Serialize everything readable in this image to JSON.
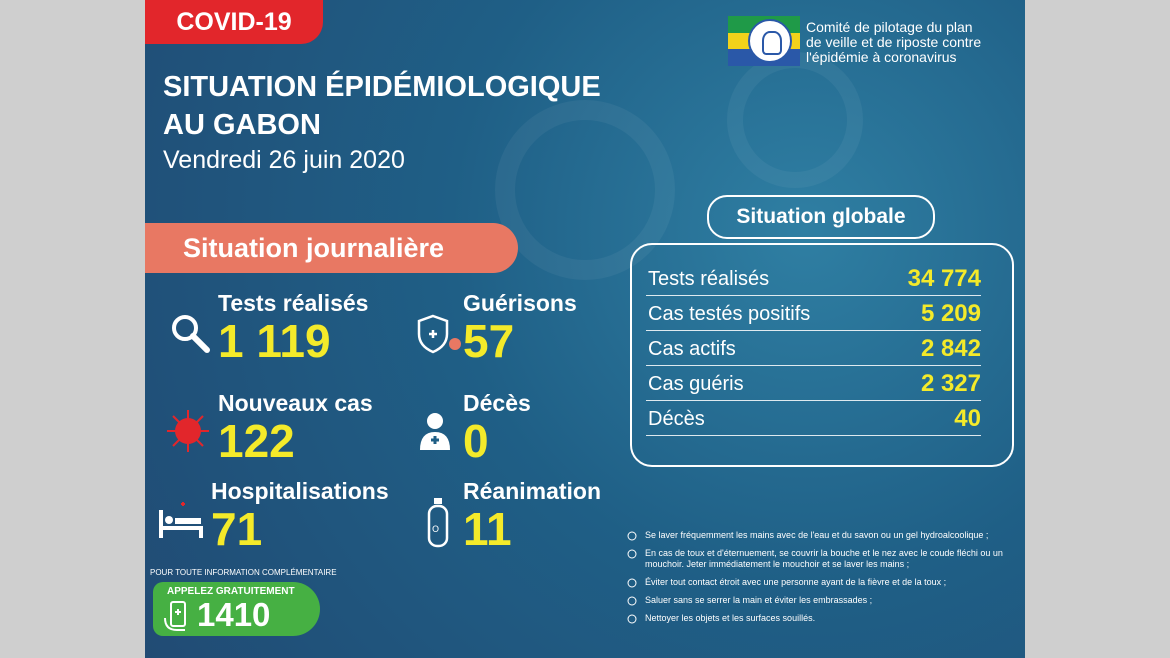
{
  "tag": "COVID-19",
  "title_line1": "SITUATION ÉPIDÉMIOLOGIQUE",
  "title_line2": "AU GABON",
  "date": "Vendredi 26 juin 2020",
  "committee": {
    "line1": "Comité de pilotage du plan",
    "line2": "de veille et de riposte contre",
    "line3": "l'épidémie à coronavirus"
  },
  "daily": {
    "heading": "Situation journalière",
    "tests": {
      "label": "Tests réalisés",
      "value": "1 119"
    },
    "recoveries": {
      "label": "Guérisons",
      "value": "57"
    },
    "new_cases": {
      "label": "Nouveaux cas",
      "value": "122"
    },
    "deaths": {
      "label": "Décès",
      "value": "0"
    },
    "hospitalisations": {
      "label": "Hospitalisations",
      "value": "71"
    },
    "icu": {
      "label": "Réanimation",
      "value": "11"
    }
  },
  "global": {
    "heading": "Situation globale",
    "rows": [
      {
        "label": "Tests réalisés",
        "value": "34 774"
      },
      {
        "label": "Cas testés positifs",
        "value": "5 209"
      },
      {
        "label": "Cas actifs",
        "value": "2 842"
      },
      {
        "label": "Cas guéris",
        "value": "2 327"
      },
      {
        "label": "Décès",
        "value": "40"
      }
    ]
  },
  "tips": [
    "Se laver fréquemment les mains avec de l'eau et du savon ou un gel hydroalcoolique ;",
    "En cas de toux et d'éternuement, se couvrir la bouche et le nez avec le coude fléchi ou un mouchoir. Jeter immédiatement le mouchoir et se laver les mains ;",
    "Éviter tout contact étroit avec une personne ayant de la fièvre et de la toux ;",
    "Saluer sans se serrer la main et éviter les embrassades ;",
    "Nettoyer les objets et les surfaces souillés."
  ],
  "contact": {
    "info": "POUR TOUTE INFORMATION COMPLÉMENTAIRE",
    "call_label": "APPELEZ GRATUITEMENT",
    "number": "1410"
  },
  "colors": {
    "accent_yellow": "#f4ea2a",
    "banner_red": "#e2262b",
    "banner_salmon": "#e87863",
    "call_green": "#46b043"
  }
}
